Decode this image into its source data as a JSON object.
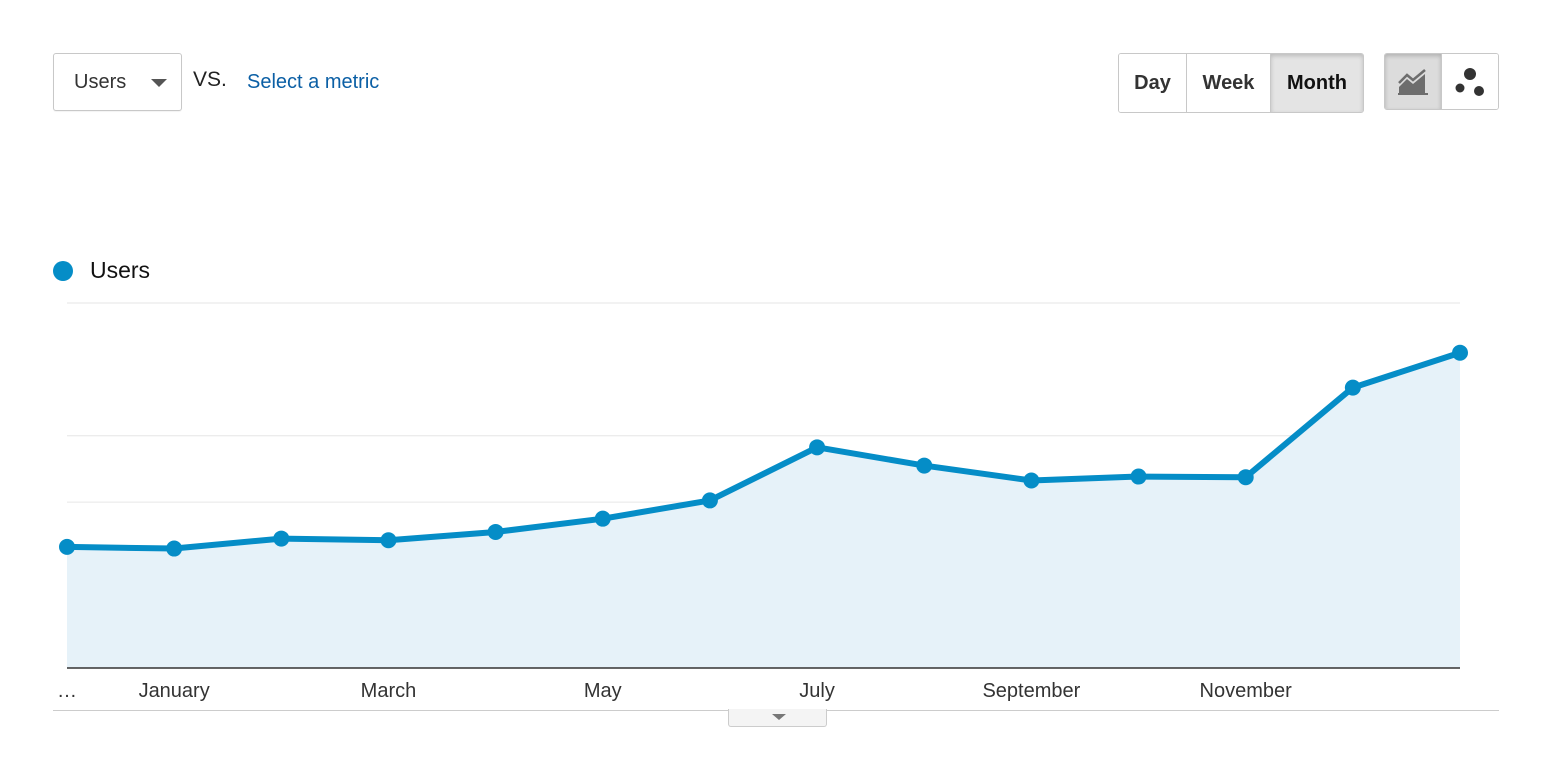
{
  "controls": {
    "metric_label": "Users",
    "vs_label": "VS.",
    "select_metric_label": "Select a metric",
    "periods": [
      "Day",
      "Week",
      "Month"
    ],
    "active_period": "Month",
    "chart_types": [
      "line-chart-icon",
      "motion-chart-icon"
    ],
    "active_chart_type": "line-chart-icon"
  },
  "legend": {
    "label": "Users",
    "color": "#058dc7"
  },
  "chart_data": {
    "type": "area",
    "title": "",
    "xlabel": "",
    "ylabel": "",
    "x_tick_labels": [
      "…",
      "January",
      "March",
      "May",
      "July",
      "September",
      "November"
    ],
    "x_tick_months": [
      -0.5,
      1,
      3,
      5,
      7,
      9,
      11
    ],
    "x": [
      0,
      1,
      2,
      3,
      4,
      5,
      6,
      7,
      8,
      9,
      10,
      11,
      12,
      13
    ],
    "ylim": [
      0,
      110
    ],
    "gridline_values": [
      10,
      30,
      50,
      70,
      110
    ],
    "grid": true,
    "y_ticks_visible": false,
    "legend_position": "top-left",
    "series": [
      {
        "name": "Users",
        "color": "#058dc7",
        "fill": "#e6f2f9",
        "values": [
          36.5,
          36,
          39,
          38.5,
          41,
          45,
          50.5,
          66.5,
          61,
          56.5,
          57.7,
          57.5,
          84.5,
          95
        ]
      }
    ]
  }
}
